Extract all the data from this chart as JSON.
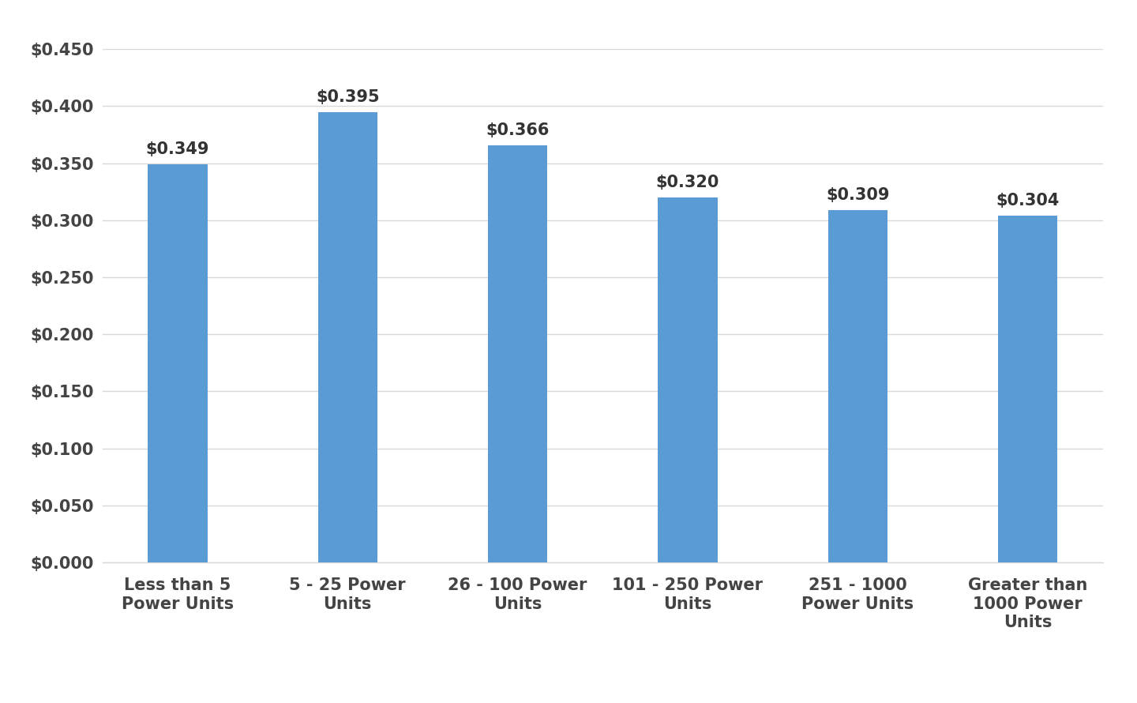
{
  "categories": [
    "Less than 5\nPower Units",
    "5 - 25 Power\nUnits",
    "26 - 100 Power\nUnits",
    "101 - 250 Power\nUnits",
    "251 - 1000\nPower Units",
    "Greater than\n1000 Power\nUnits"
  ],
  "values": [
    0.349,
    0.395,
    0.366,
    0.32,
    0.309,
    0.304
  ],
  "labels": [
    "$0.349",
    "$0.395",
    "$0.366",
    "$0.320",
    "$0.309",
    "$0.304"
  ],
  "bar_color": "#5b9bd5",
  "background_color": "#ffffff",
  "grid_color": "#d9d9d9",
  "ylim": [
    0,
    0.45
  ],
  "yticks": [
    0.0,
    0.05,
    0.1,
    0.15,
    0.2,
    0.25,
    0.3,
    0.35,
    0.4,
    0.45
  ],
  "label_fontsize": 15,
  "tick_fontsize": 15,
  "xtick_fontsize": 15,
  "bar_width": 0.35
}
